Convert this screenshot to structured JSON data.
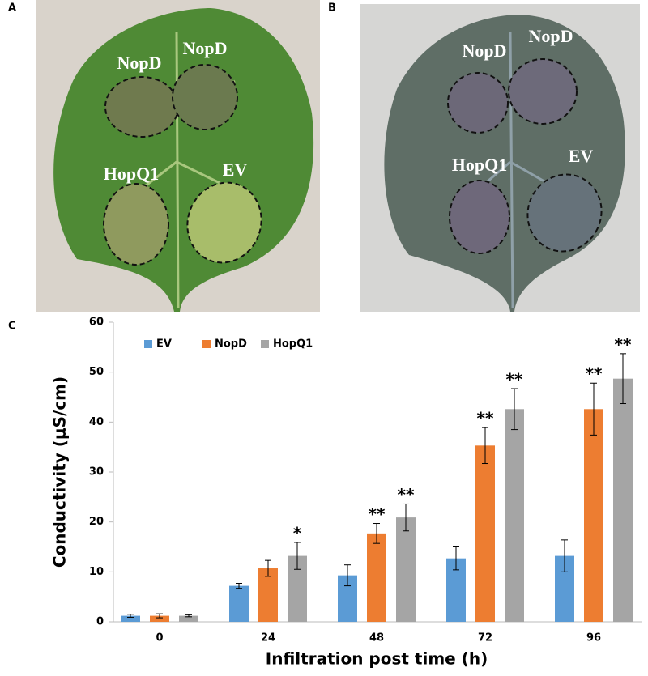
{
  "panel_a": {
    "label": "A",
    "spots": [
      "NopD",
      "NopD",
      "HopQ1",
      "EV"
    ]
  },
  "panel_b": {
    "label": "B",
    "spots": [
      "NopD",
      "NopD",
      "HopQ1",
      "EV"
    ]
  },
  "panel_c_label": "C",
  "chart_data": {
    "type": "bar",
    "y_label": "Conductivity (μS/cm)",
    "x_label": "Infiltration post time (h)",
    "categories": [
      "0",
      "24",
      "48",
      "72",
      "96"
    ],
    "series": [
      {
        "name": "EV",
        "color": "#5b9bd5",
        "values": [
          1.2,
          7.2,
          9.3,
          12.7,
          13.2
        ],
        "errors": [
          0.3,
          0.5,
          2.1,
          2.3,
          3.2
        ],
        "significance": [
          null,
          null,
          null,
          null,
          null
        ]
      },
      {
        "name": "NopD",
        "color": "#ed7d31",
        "values": [
          1.2,
          10.7,
          17.7,
          35.3,
          42.6
        ],
        "errors": [
          0.4,
          1.6,
          2.0,
          3.6,
          5.2
        ],
        "significance": [
          null,
          null,
          "**",
          "**",
          "**"
        ]
      },
      {
        "name": "HopQ1",
        "color": "#a5a5a5",
        "values": [
          1.2,
          13.2,
          20.9,
          42.6,
          48.7
        ],
        "errors": [
          0.2,
          2.7,
          2.7,
          4.1,
          5.0
        ],
        "significance": [
          null,
          "*",
          "**",
          "**",
          "**"
        ]
      }
    ],
    "ylim": [
      0,
      60
    ],
    "yticks": [
      0,
      10,
      20,
      30,
      40,
      50,
      60
    ],
    "grid": false,
    "legend": "top-left"
  }
}
